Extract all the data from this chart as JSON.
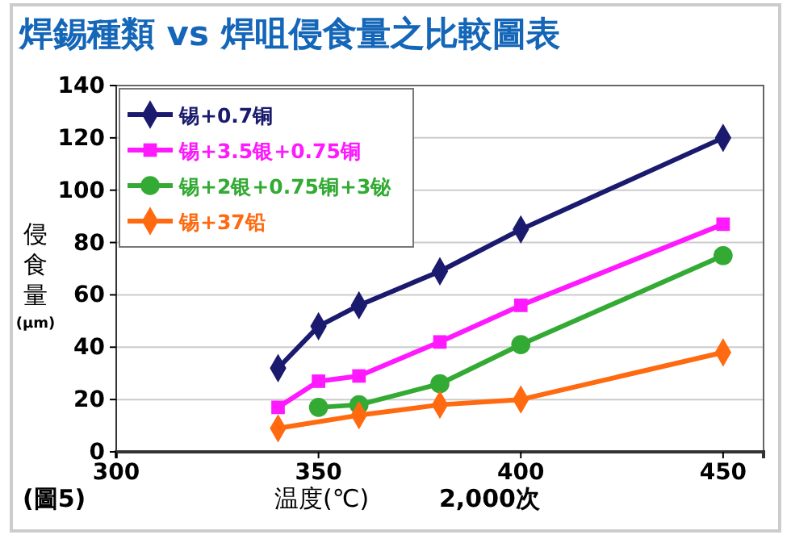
{
  "chart_data": {
    "type": "line",
    "title": "焊錫種類 vs 焊咀侵食量之比較圖表",
    "xlabel": "温度(℃)",
    "ylabel": "侵食量$_{(μm)}$",
    "annotations": [
      "2,000次",
      "(圖5)"
    ],
    "xlim": [
      300,
      460
    ],
    "xticks": [
      300,
      350,
      400,
      450
    ],
    "ylim": [
      0,
      140
    ],
    "yticks": [
      0,
      20,
      40,
      60,
      80,
      100,
      120,
      140
    ],
    "grid": "y",
    "legend": "top left",
    "series": [
      {
        "name": "锡+0.7铜",
        "color": "#1a1a6e",
        "marker": "diamond",
        "x": [
          340,
          350,
          360,
          380,
          400,
          450
        ],
        "values": [
          32,
          48,
          56,
          69,
          85,
          120
        ]
      },
      {
        "name": "锡+3.5银+0.75铜",
        "color": "#ff19ff",
        "marker": "square",
        "x": [
          340,
          350,
          360,
          380,
          400,
          450
        ],
        "values": [
          17,
          27,
          29,
          42,
          56,
          87
        ]
      },
      {
        "name": "锡+2银+0.75铜+3铋",
        "color": "#33aa33",
        "marker": "circle",
        "x": [
          350,
          360,
          380,
          400,
          450
        ],
        "values": [
          17,
          18,
          26,
          41,
          75
        ]
      },
      {
        "name": "锡+37铅",
        "color": "#ff6a10",
        "marker": "diamond",
        "x": [
          340,
          360,
          380,
          400,
          450
        ],
        "values": [
          9,
          14,
          18,
          20,
          38
        ]
      }
    ]
  }
}
